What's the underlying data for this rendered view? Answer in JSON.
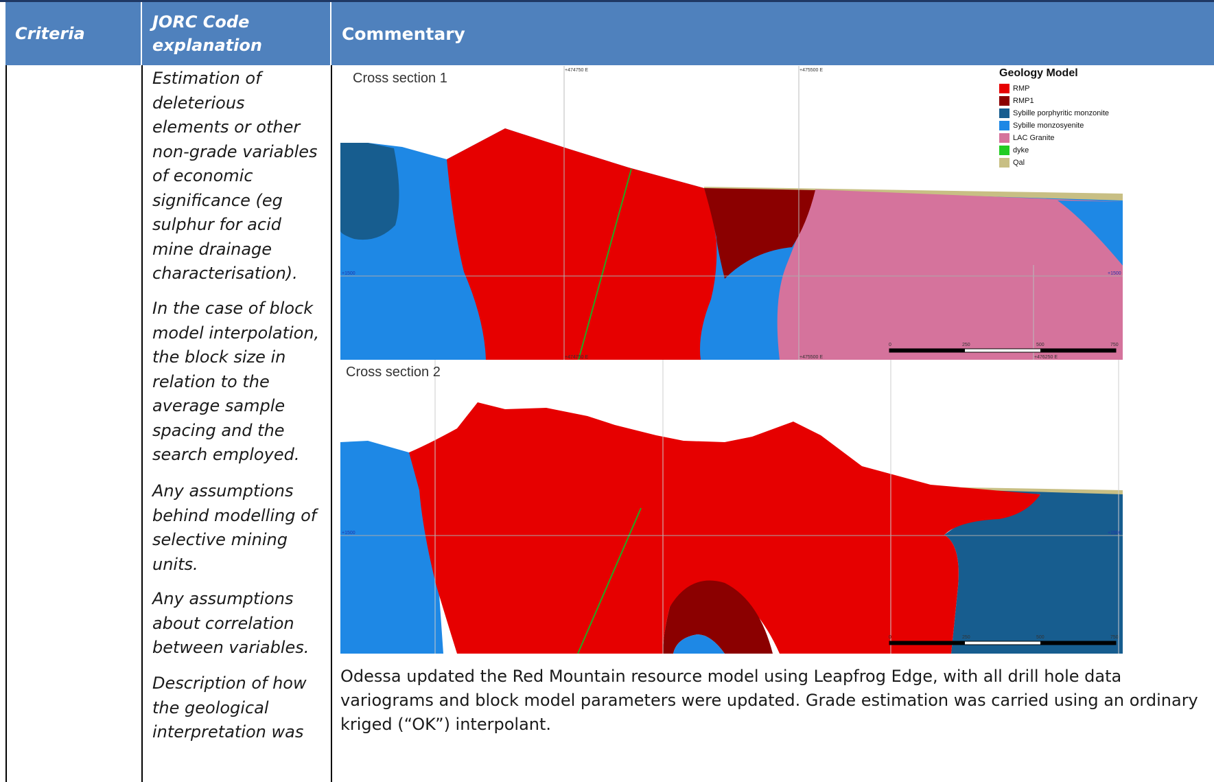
{
  "header": {
    "criteria": "Criteria",
    "jorc_explanation": "JORC Code explanation",
    "commentary": "Commentary"
  },
  "explanation_paragraphs": [
    "Estimation of deleterious elements or other non-grade variables of economic significance (eg sulphur for acid mine drainage characterisation).",
    "In the case of block model interpolation, the block size in relation to the average sample spacing and the search employed.",
    "Any assumptions behind modelling of selective mining units.",
    "Any assumptions about correlation between variables.",
    "Description of how the geological interpretation was"
  ],
  "figure": {
    "section1_label": "Cross section 1",
    "section2_label": "Cross section 2",
    "legend": {
      "title": "Geology Model",
      "items": [
        {
          "label": "RMP",
          "color": "#e60000"
        },
        {
          "label": "RMP1",
          "color": "#8b0000"
        },
        {
          "label": "Sybille porphyritic monzonite",
          "color": "#175d8f"
        },
        {
          "label": "Sybille monzosyenite",
          "color": "#1e88e5"
        },
        {
          "label": "LAC Granite",
          "color": "#d5739c"
        },
        {
          "label": "dyke",
          "color": "#22cc22"
        },
        {
          "label": "Qal",
          "color": "#c8bf84"
        }
      ]
    },
    "grid_labels_s1": {
      "e1": "+474750 E",
      "e2": "+475500 E",
      "e1_bottom": "+474750 E",
      "e2_bottom": "+475500 E",
      "e3_bottom": "+476250 E",
      "elev_left": "+1500",
      "elev_right": "+1500"
    },
    "grid_labels_s2": {
      "elev_left": "+1500",
      "elev_right": "+1500"
    },
    "scale_ticks": [
      "0",
      "250",
      "500",
      "750"
    ]
  },
  "commentary_text": "Odessa updated the Red Mountain resource model using Leapfrog Edge, with all drill hole data variograms and block model parameters were updated. Grade estimation was carried using an ordinary kriged (“OK”) interpolant."
}
